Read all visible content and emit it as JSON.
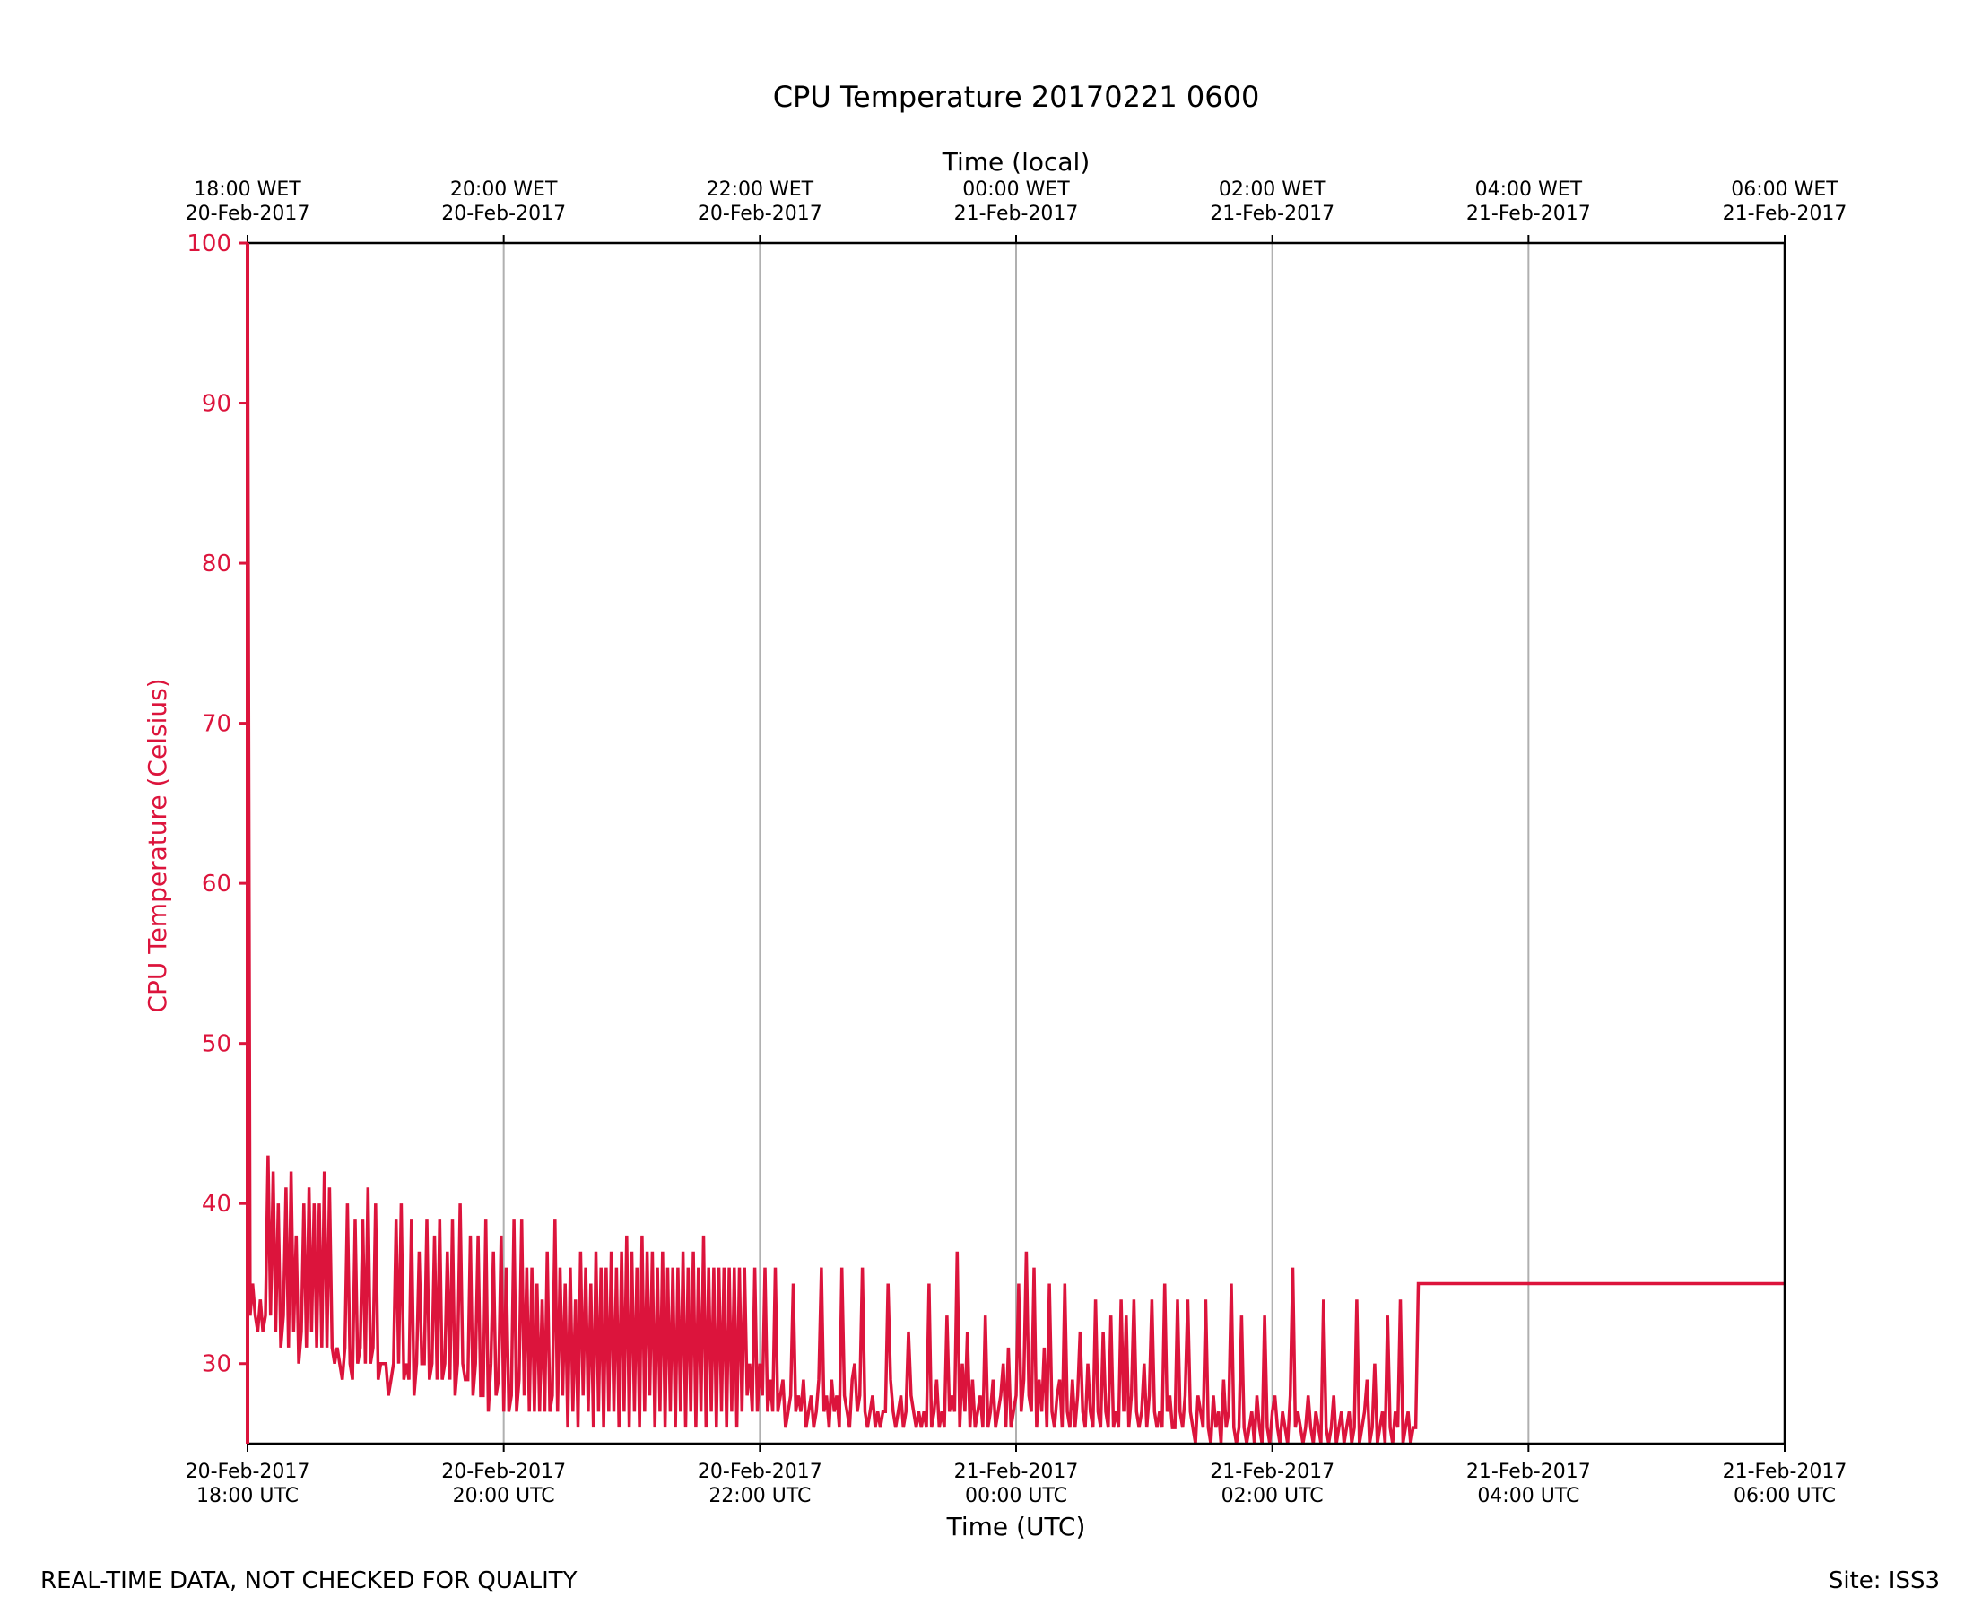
{
  "chart_data": {
    "type": "line",
    "title": "CPU Temperature 20170221 0600",
    "xlabel": "Time (UTC)",
    "top_xlabel": "Time (local)",
    "ylabel": "CPU Temperature (Celsius)",
    "color": "#dc143c",
    "ylim": [
      25,
      100
    ],
    "xlim_hours": [
      0,
      12
    ],
    "yticks": [
      30,
      40,
      50,
      60,
      70,
      80,
      90,
      100
    ],
    "grid": "vertical",
    "xticks": [
      {
        "hour": 0,
        "utc_date": "20-Feb-2017",
        "utc_time": "18:00 UTC",
        "local_time": "18:00 WET",
        "local_date": "20-Feb-2017"
      },
      {
        "hour": 2,
        "utc_date": "20-Feb-2017",
        "utc_time": "20:00 UTC",
        "local_time": "20:00 WET",
        "local_date": "20-Feb-2017"
      },
      {
        "hour": 4,
        "utc_date": "20-Feb-2017",
        "utc_time": "22:00 UTC",
        "local_time": "22:00 WET",
        "local_date": "20-Feb-2017"
      },
      {
        "hour": 6,
        "utc_date": "21-Feb-2017",
        "utc_time": "00:00 UTC",
        "local_time": "00:00 WET",
        "local_date": "21-Feb-2017"
      },
      {
        "hour": 8,
        "utc_date": "21-Feb-2017",
        "utc_time": "02:00 UTC",
        "local_time": "02:00 WET",
        "local_date": "21-Feb-2017"
      },
      {
        "hour": 10,
        "utc_date": "21-Feb-2017",
        "utc_time": "04:00 UTC",
        "local_time": "04:00 WET",
        "local_date": "21-Feb-2017"
      },
      {
        "hour": 12,
        "utc_date": "21-Feb-2017",
        "utc_time": "06:00 UTC",
        "local_time": "06:00 WET",
        "local_date": "21-Feb-2017"
      }
    ],
    "series": [
      {
        "name": "CPU Temperature",
        "sample_step_hours": 0.02,
        "values": [
          100,
          33,
          35,
          33,
          32,
          34,
          32,
          33,
          43,
          33,
          42,
          32,
          40,
          31,
          33,
          41,
          31,
          42,
          32,
          38,
          30,
          32,
          40,
          31,
          41,
          32,
          40,
          31,
          40,
          31,
          42,
          31,
          41,
          31,
          30,
          31,
          30,
          29,
          31,
          40,
          30,
          29,
          39,
          30,
          31,
          39,
          30,
          41,
          30,
          31,
          40,
          29,
          30,
          30,
          30,
          28,
          29,
          30,
          39,
          30,
          40,
          29,
          30,
          29,
          39,
          28,
          30,
          37,
          30,
          30,
          39,
          29,
          30,
          38,
          29,
          39,
          29,
          30,
          37,
          29,
          39,
          28,
          30,
          40,
          30,
          29,
          29,
          38,
          28,
          30,
          38,
          28,
          28,
          39,
          27,
          30,
          37,
          28,
          29,
          38,
          27,
          36,
          27,
          28,
          39,
          27,
          29,
          39,
          28,
          36,
          27,
          36,
          27,
          35,
          27,
          34,
          27,
          37,
          27,
          28,
          39,
          27,
          36,
          28,
          35,
          26,
          36,
          27,
          34,
          26,
          37,
          28,
          36,
          27,
          35,
          26,
          37,
          27,
          36,
          26,
          36,
          27,
          37,
          27,
          36,
          26,
          37,
          27,
          38,
          26,
          37,
          27,
          36,
          26,
          38,
          27,
          37,
          28,
          37,
          26,
          36,
          27,
          37,
          26,
          36,
          27,
          36,
          26,
          36,
          27,
          37,
          26,
          36,
          27,
          37,
          26,
          36,
          27,
          38,
          26,
          36,
          27,
          36,
          26,
          36,
          27,
          36,
          26,
          36,
          27,
          36,
          26,
          36,
          27,
          36,
          28,
          30,
          27,
          36,
          27,
          30,
          28,
          36,
          27,
          29,
          27,
          36,
          27,
          28,
          29,
          26,
          27,
          28,
          35,
          27,
          28,
          27,
          29,
          26,
          27,
          28,
          26,
          27,
          29,
          36,
          27,
          28,
          26,
          29,
          27,
          28,
          26,
          36,
          28,
          27,
          26,
          29,
          30,
          27,
          28,
          36,
          27,
          26,
          27,
          28,
          26,
          27,
          26,
          27,
          27,
          35,
          29,
          27,
          26,
          27,
          28,
          26,
          27,
          32,
          28,
          27,
          26,
          27,
          26,
          27,
          26,
          35,
          26,
          27,
          29,
          26,
          27,
          26,
          33,
          27,
          28,
          27,
          37,
          26,
          30,
          27,
          32,
          26,
          29,
          26,
          27,
          28,
          26,
          33,
          26,
          27,
          29,
          26,
          27,
          28,
          30,
          26,
          31,
          26,
          27,
          28,
          35,
          27,
          29,
          37,
          28,
          27,
          36,
          26,
          29,
          27,
          31,
          26,
          35,
          27,
          26,
          28,
          29,
          26,
          35,
          27,
          26,
          29,
          26,
          28,
          32,
          27,
          26,
          30,
          27,
          26,
          34,
          27,
          26,
          32,
          27,
          26,
          33,
          26,
          27,
          26,
          34,
          27,
          33,
          26,
          28,
          34,
          27,
          26,
          27,
          30,
          26,
          28,
          34,
          27,
          26,
          27,
          26,
          35,
          27,
          28,
          26,
          26,
          34,
          27,
          26,
          28,
          34,
          27,
          26,
          25,
          28,
          27,
          26,
          34,
          26,
          25,
          28,
          26,
          27,
          25,
          29,
          26,
          27,
          35,
          26,
          25,
          26,
          33,
          26,
          25,
          26,
          27,
          25,
          28,
          26,
          25,
          33,
          26,
          25,
          27,
          28,
          26,
          25,
          27,
          26,
          25,
          28,
          36,
          26,
          27,
          26,
          25,
          26,
          28,
          26,
          25,
          27,
          26,
          25,
          34,
          26,
          25,
          26,
          28,
          25,
          26,
          27,
          25,
          26,
          27,
          25,
          26,
          34,
          25,
          26,
          27,
          29,
          25,
          26,
          30,
          25,
          26,
          27,
          25,
          33,
          26,
          25,
          27,
          26,
          34,
          25,
          26,
          27,
          25,
          26,
          26,
          35
        ]
      }
    ]
  },
  "footer": {
    "note": "REAL-TIME DATA, NOT CHECKED FOR QUALITY",
    "site": "Site: ISS3"
  }
}
